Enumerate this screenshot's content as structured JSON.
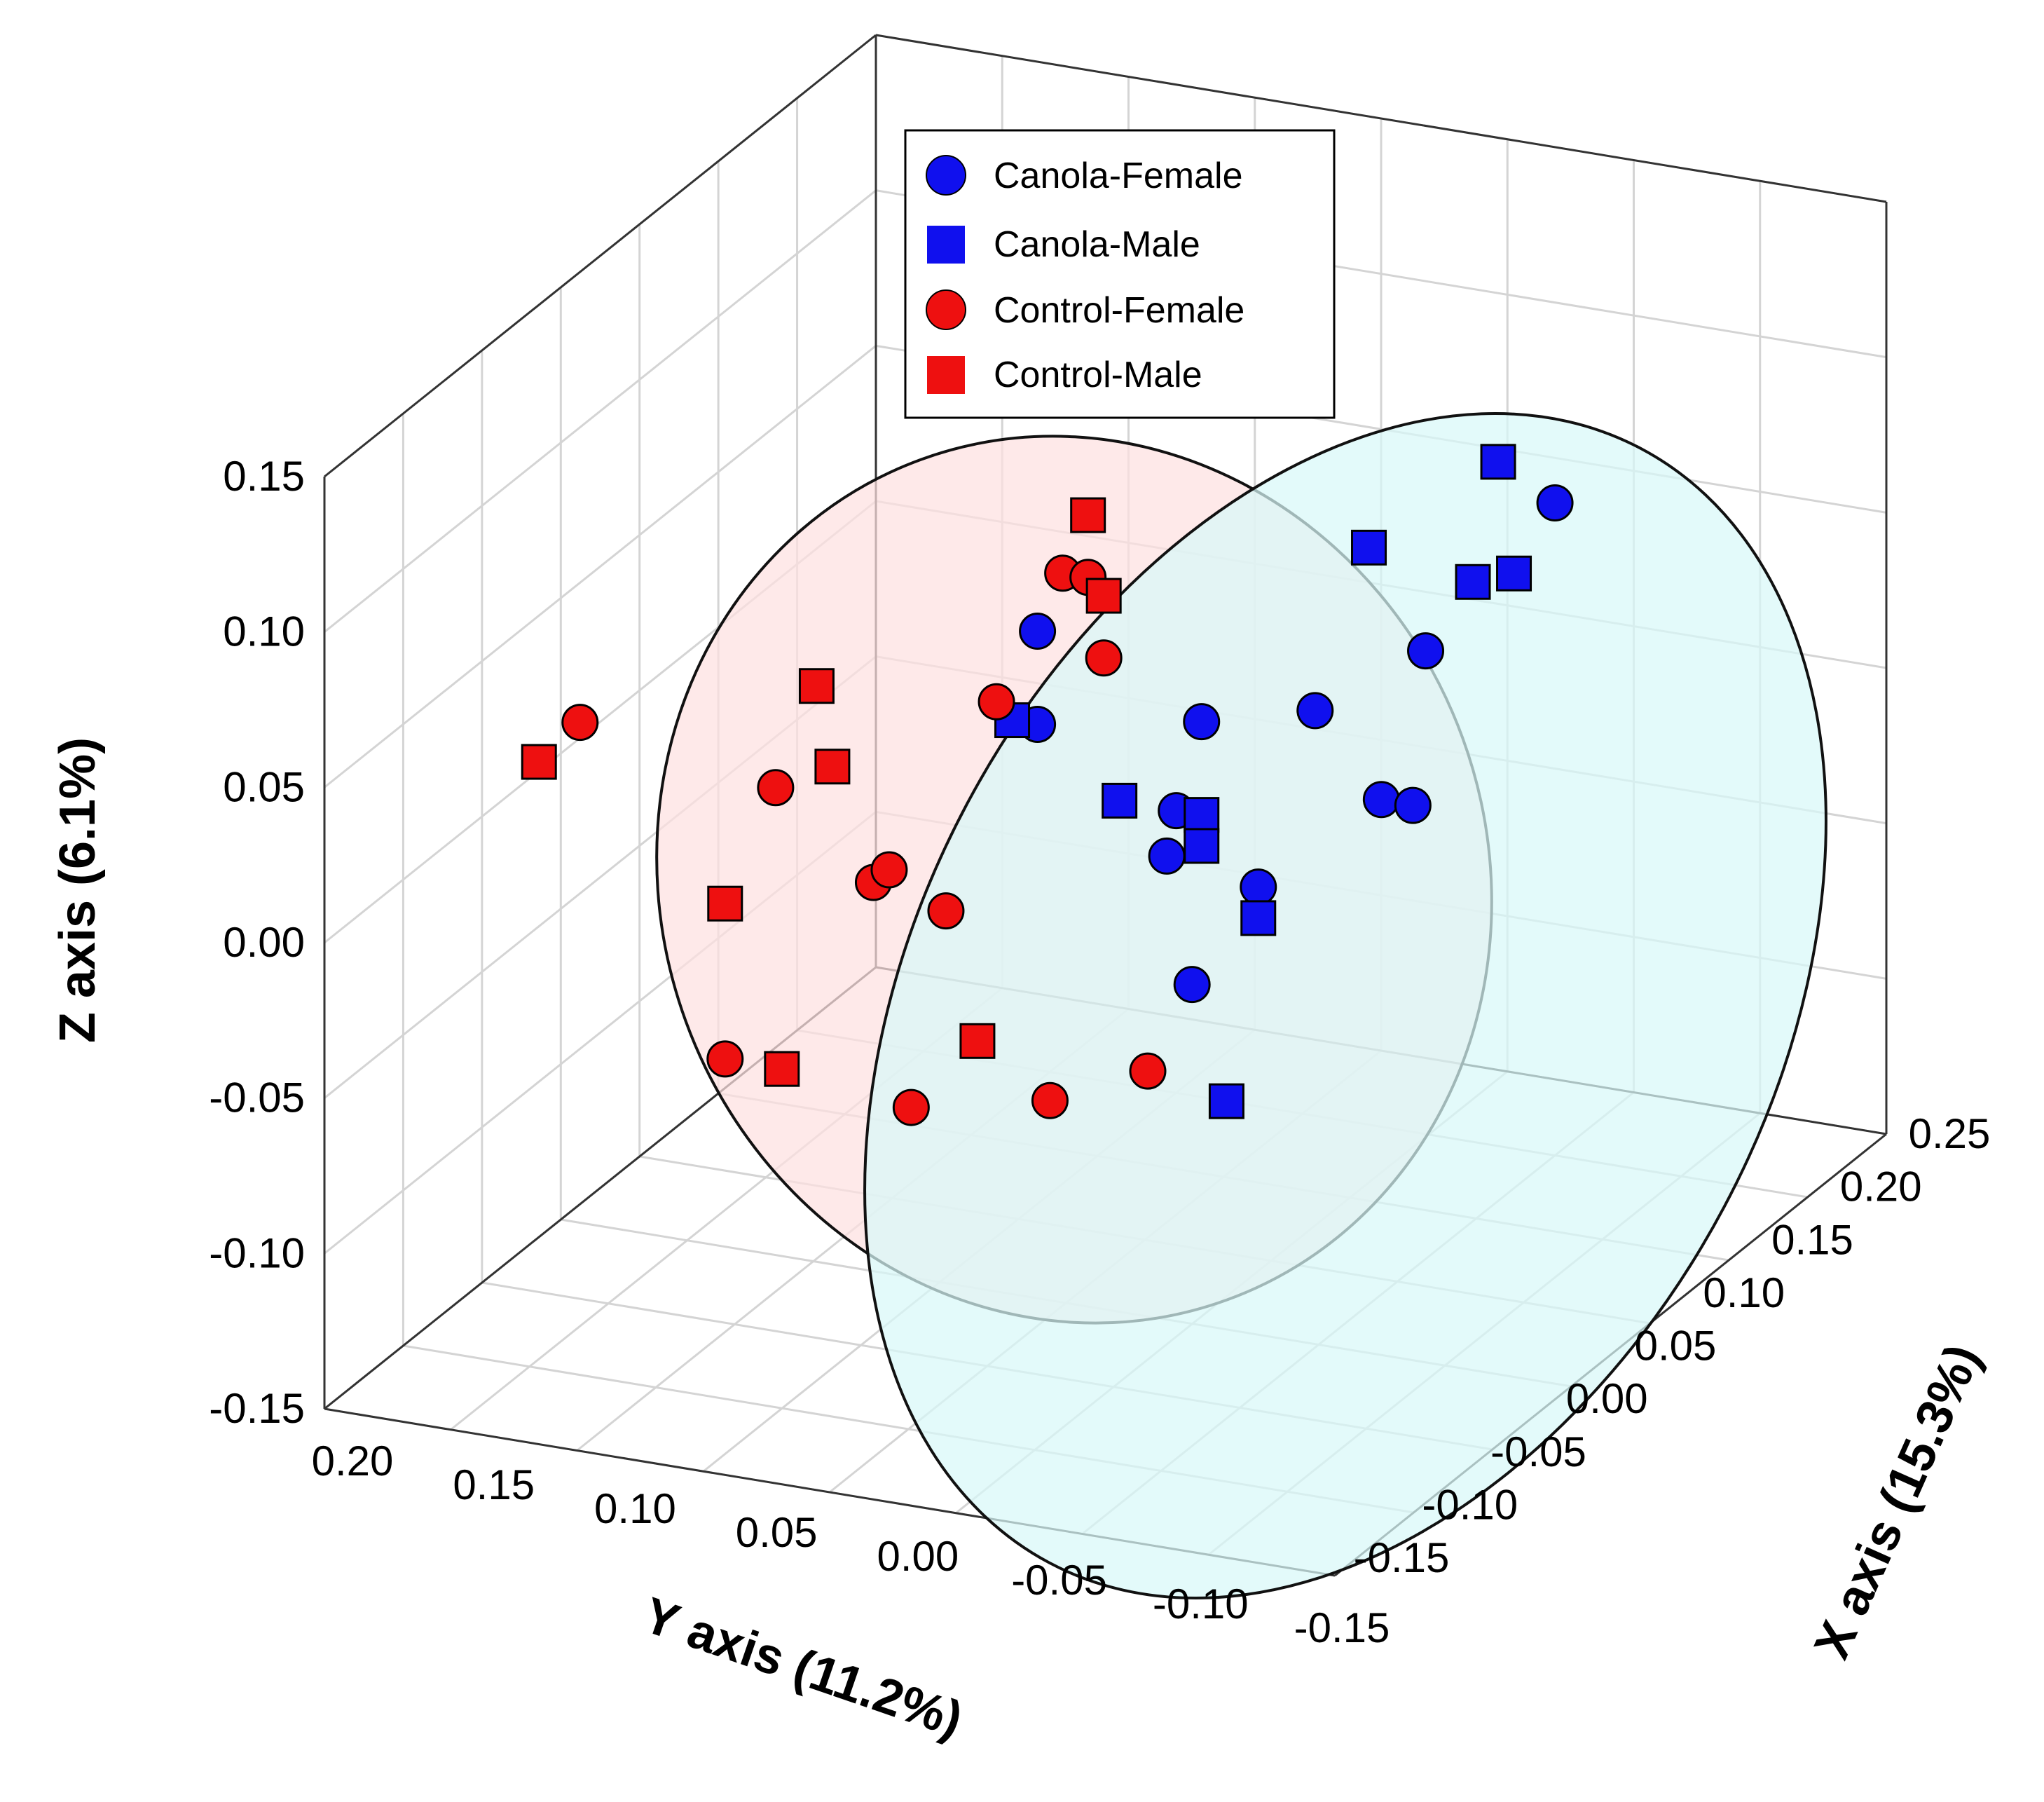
{
  "chart_data": {
    "type": "scatter",
    "subtype": "3d-scatter",
    "axes": {
      "x": {
        "label": "X axis (15.3%)",
        "range": [
          -0.15,
          0.25
        ],
        "ticks": [
          "-0.15",
          "-0.10",
          "-0.05",
          "0.00",
          "0.05",
          "0.10",
          "0.15",
          "0.20",
          "0.25"
        ]
      },
      "y": {
        "label": "Y axis (11.2%)",
        "range": [
          -0.15,
          0.2
        ],
        "ticks": [
          "0.20",
          "0.15",
          "0.10",
          "0.05",
          "0.00",
          "-0.05",
          "-0.10",
          "-0.15"
        ]
      },
      "z": {
        "label": "Z axis (6.1%)",
        "range": [
          -0.15,
          0.15
        ],
        "ticks": [
          "0.15",
          "0.10",
          "0.05",
          "0.00",
          "-0.05",
          "-0.10",
          "-0.15"
        ]
      }
    },
    "grid": true,
    "legend": {
      "placement": "top-center",
      "items": [
        {
          "name": "Canola-Female",
          "marker": "circle",
          "color": "#1010ee"
        },
        {
          "name": "Canola-Male",
          "marker": "square",
          "color": "#1010ee"
        },
        {
          "name": "Control-Female",
          "marker": "circle",
          "color": "#ee1010"
        },
        {
          "name": "Control-Male",
          "marker": "square",
          "color": "#ee1010"
        }
      ]
    },
    "ellipses": [
      {
        "group": "Control",
        "fill": "#fde0e0"
      },
      {
        "group": "Canola",
        "fill": "#d8f8f8"
      }
    ],
    "series": [
      {
        "name": "Canola-Female",
        "marker": "circle",
        "color": "#1010ee",
        "points": [
          {
            "x": 0.15,
            "y": -0.1,
            "z": 0.06
          },
          {
            "x": 0.13,
            "y": -0.05,
            "z": 0.03
          },
          {
            "x": 0.02,
            "y": 0.02,
            "z": 0.05
          },
          {
            "x": 0.06,
            "y": -0.02,
            "z": 0.01
          },
          {
            "x": 0.02,
            "y": 0.02,
            "z": 0.02
          },
          {
            "x": 0.08,
            "y": -0.06,
            "z": 0.0
          },
          {
            "x": 0.05,
            "y": -0.02,
            "z": -0.02
          },
          {
            "x": 0.1,
            "y": -0.07,
            "z": -0.03
          },
          {
            "x": 0.04,
            "y": -0.03,
            "z": -0.04
          },
          {
            "x": 0.07,
            "y": -0.04,
            "z": -0.05
          },
          {
            "x": 0.1,
            "y": -0.09,
            "z": -0.04
          },
          {
            "x": 0.05,
            "y": -0.03,
            "z": -0.08
          }
        ]
      },
      {
        "name": "Canola-Male",
        "marker": "square",
        "color": "#1010ee",
        "points": [
          {
            "x": 0.14,
            "y": -0.08,
            "z": 0.08
          },
          {
            "x": 0.12,
            "y": -0.03,
            "z": 0.07
          },
          {
            "x": 0.13,
            "y": -0.08,
            "z": 0.04
          },
          {
            "x": 0.14,
            "y": -0.09,
            "z": 0.04
          },
          {
            "x": 0.01,
            "y": 0.02,
            "z": 0.02
          },
          {
            "x": 0.04,
            "y": -0.0,
            "z": -0.01
          },
          {
            "x": 0.06,
            "y": -0.02,
            "z": -0.02
          },
          {
            "x": 0.06,
            "y": -0.02,
            "z": -0.03
          },
          {
            "x": 0.07,
            "y": -0.04,
            "z": -0.06
          },
          {
            "x": 0.02,
            "y": -0.1,
            "z": -0.15
          }
        ]
      },
      {
        "name": "Control-Female",
        "marker": "circle",
        "color": "#ee1010",
        "points": [
          {
            "x": -0.08,
            "y": 0.15,
            "z": 0.06
          },
          {
            "x": 0.03,
            "y": 0.02,
            "z": 0.07
          },
          {
            "x": 0.04,
            "y": 0.02,
            "z": 0.07
          },
          {
            "x": 0.04,
            "y": 0.01,
            "z": 0.04
          },
          {
            "x": 0.01,
            "y": 0.03,
            "z": 0.03
          },
          {
            "x": -0.04,
            "y": 0.09,
            "z": 0.02
          },
          {
            "x": -0.02,
            "y": 0.06,
            "z": -0.02
          },
          {
            "x": -0.02,
            "y": 0.05,
            "z": -0.02
          },
          {
            "x": -0.01,
            "y": 0.03,
            "z": -0.04
          },
          {
            "x": -0.06,
            "y": 0.09,
            "z": -0.07
          },
          {
            "x": -0.03,
            "y": 0.02,
            "z": -0.11
          },
          {
            "x": 0.0,
            "y": -0.02,
            "z": -0.12
          },
          {
            "x": 0.02,
            "y": -0.05,
            "z": -0.12
          }
        ]
      },
      {
        "name": "Control-Male",
        "marker": "square",
        "color": "#ee1010",
        "points": [
          {
            "x": -0.09,
            "y": 0.16,
            "z": 0.05
          },
          {
            "x": -0.03,
            "y": 0.08,
            "z": 0.05
          },
          {
            "x": 0.04,
            "y": 0.02,
            "z": 0.09
          },
          {
            "x": 0.04,
            "y": 0.01,
            "z": 0.06
          },
          {
            "x": -0.03,
            "y": 0.07,
            "z": 0.02
          },
          {
            "x": -0.06,
            "y": 0.09,
            "z": -0.02
          },
          {
            "x": -0.05,
            "y": 0.07,
            "z": -0.08
          },
          {
            "x": -0.01,
            "y": 0.01,
            "z": -0.09
          }
        ]
      }
    ]
  }
}
